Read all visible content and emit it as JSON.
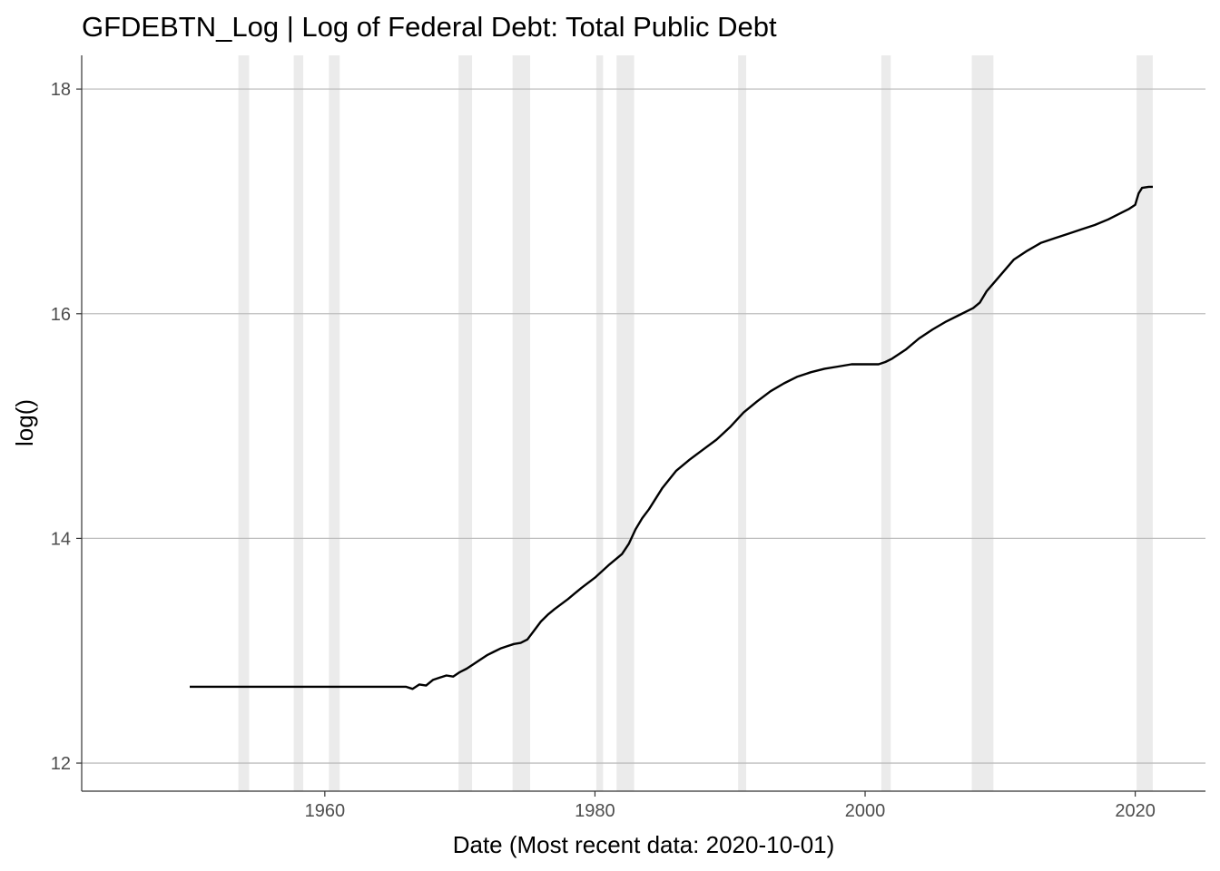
{
  "chart_data": {
    "type": "line",
    "title": "GFDEBTN_Log | Log of Federal Debt: Total Public Debt",
    "xlabel": "Date (Most recent data: 2020-10-01)",
    "ylabel": "log()",
    "xlim": [
      1942.0,
      2025.2
    ],
    "ylim": [
      11.75,
      18.3
    ],
    "x_ticks": [
      1960,
      1980,
      2000,
      2020
    ],
    "y_ticks": [
      12,
      14,
      16,
      18
    ],
    "grid": "horizontal major",
    "recession_bands": [
      [
        1953.6,
        1954.4
      ],
      [
        1957.7,
        1958.4
      ],
      [
        1960.3,
        1961.1
      ],
      [
        1969.9,
        1970.9
      ],
      [
        1973.9,
        1975.2
      ],
      [
        1980.1,
        1980.6
      ],
      [
        1981.6,
        1982.9
      ],
      [
        1990.6,
        1991.2
      ],
      [
        2001.2,
        2001.9
      ],
      [
        2007.9,
        2009.5
      ],
      [
        2020.1,
        2021.3
      ]
    ],
    "series": [
      {
        "x": [
          1950.0,
          1955.0,
          1960.0,
          1965.0,
          1966.0,
          1966.5,
          1967.0,
          1967.5,
          1968.0,
          1968.5,
          1969.0,
          1969.5,
          1970.0,
          1970.5,
          1971.0,
          1971.5,
          1972.0,
          1972.5,
          1973.0,
          1973.5,
          1974.0,
          1974.5,
          1975.0,
          1975.5,
          1976.0,
          1976.5,
          1977.0,
          1978.0,
          1979.0,
          1980.0,
          1981.0,
          1982.0,
          1982.5,
          1983.0,
          1983.5,
          1984.0,
          1985.0,
          1986.0,
          1987.0,
          1988.0,
          1989.0,
          1990.0,
          1991.0,
          1992.0,
          1993.0,
          1994.0,
          1995.0,
          1996.0,
          1997.0,
          1998.0,
          1999.0,
          2000.0,
          2000.5,
          2001.0,
          2001.5,
          2002.0,
          2003.0,
          2004.0,
          2005.0,
          2006.0,
          2007.0,
          2008.0,
          2008.5,
          2009.0,
          2009.5,
          2010.0,
          2011.0,
          2012.0,
          2013.0,
          2014.0,
          2015.0,
          2016.0,
          2017.0,
          2018.0,
          2019.0,
          2019.5,
          2020.0,
          2020.25,
          2020.5,
          2021.0,
          2021.3
        ],
        "values": [
          12.68,
          12.68,
          12.68,
          12.68,
          12.68,
          12.66,
          12.7,
          12.69,
          12.74,
          12.76,
          12.78,
          12.77,
          12.81,
          12.84,
          12.88,
          12.92,
          12.96,
          12.99,
          13.02,
          13.04,
          13.06,
          13.07,
          13.1,
          13.18,
          13.26,
          13.32,
          13.37,
          13.46,
          13.56,
          13.65,
          13.76,
          13.86,
          13.95,
          14.08,
          14.18,
          14.26,
          14.45,
          14.6,
          14.7,
          14.79,
          14.88,
          14.99,
          15.12,
          15.22,
          15.31,
          15.38,
          15.44,
          15.48,
          15.51,
          15.53,
          15.55,
          15.55,
          15.55,
          15.55,
          15.57,
          15.6,
          15.68,
          15.78,
          15.86,
          15.93,
          15.99,
          16.05,
          16.1,
          16.2,
          16.27,
          16.34,
          16.48,
          16.56,
          16.63,
          16.67,
          16.71,
          16.75,
          16.79,
          16.84,
          16.9,
          16.93,
          16.97,
          17.07,
          17.12,
          17.13,
          17.13
        ]
      }
    ]
  }
}
